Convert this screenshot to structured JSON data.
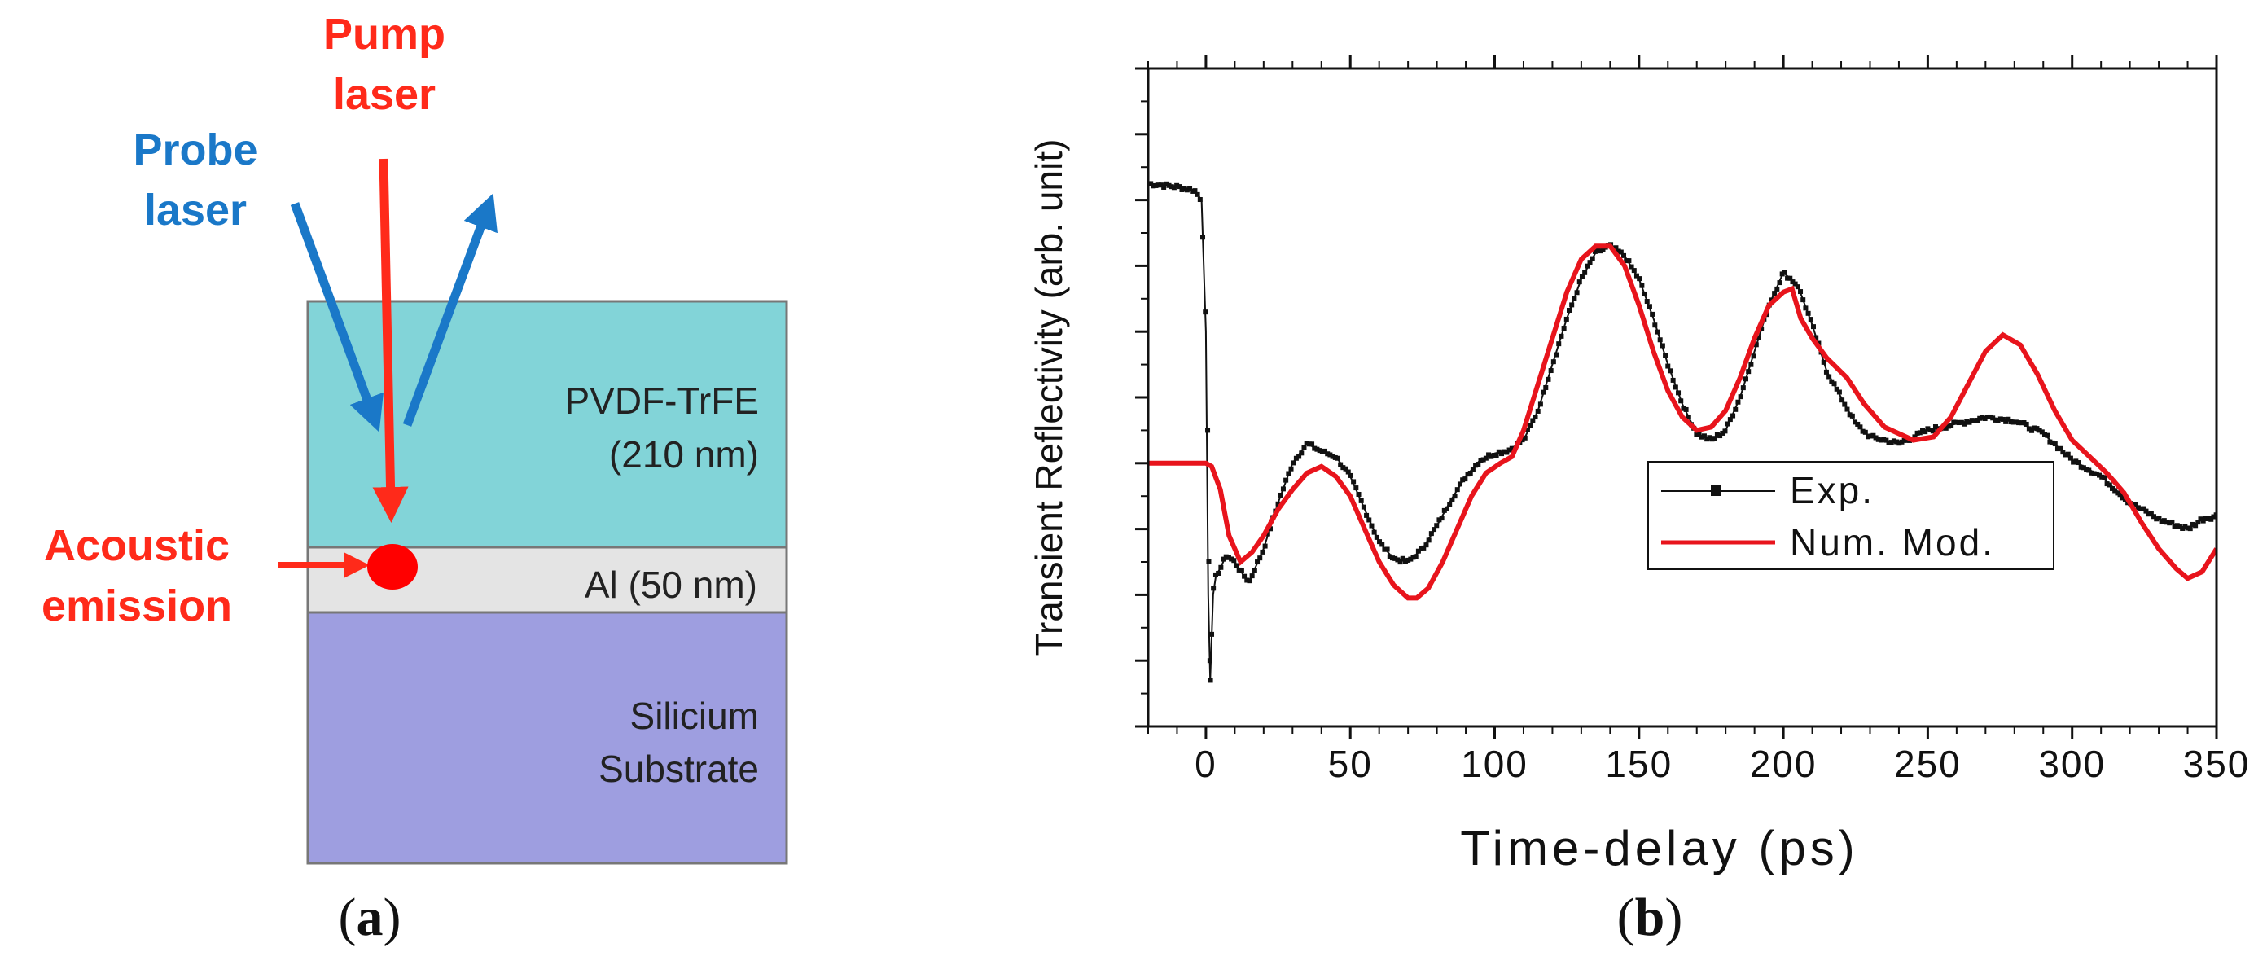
{
  "panel_a": {
    "caption_open": "(",
    "caption_letter": "a",
    "caption_close": ")",
    "pump_label_line1": "Pump",
    "pump_label_line2": "laser",
    "probe_label_line1": "Probe",
    "probe_label_line2": "laser",
    "acoustic_label_line1": "Acoustic",
    "acoustic_label_line2": "emission",
    "layer_pvdf_line1": "PVDF-TrFE",
    "layer_pvdf_line2": "(210 nm)",
    "layer_al": "Al (50 nm)",
    "layer_si_line1": "Silicium",
    "layer_si_line2": "Substrate",
    "colors": {
      "pump": "#ff2a1a",
      "probe": "#1a78c8",
      "pvdf": "#82d4d8",
      "al": "#e4e4e4",
      "substrate": "#9e9ee0",
      "border": "#777777"
    }
  },
  "panel_b": {
    "caption_open": "(",
    "caption_letter": "b",
    "caption_close": ")",
    "legend": {
      "exp": "Exp.",
      "num": "Num. Mod."
    },
    "colors": {
      "exp": "#111111",
      "num": "#e8141c"
    }
  },
  "chart_data": {
    "type": "line",
    "title": "",
    "xlabel": "Time-delay (ps)",
    "ylabel": "Transient Reflectivity (arb. unit)",
    "xlim": [
      -20,
      350
    ],
    "ylim": [
      -4,
      6
    ],
    "x_ticks": [
      0,
      50,
      100,
      150,
      200,
      250,
      300,
      350
    ],
    "y_ticks_unlabeled": [
      -4,
      -3,
      -2,
      -1,
      0,
      1,
      2,
      3,
      4,
      5,
      6
    ],
    "legend_position": "right-middle",
    "series": [
      {
        "name": "Exp.",
        "style": "black squares with thin line",
        "points": [
          [
            -20,
            4.25
          ],
          [
            -10,
            4.2
          ],
          [
            -4,
            4.15
          ],
          [
            -1.5,
            4.0
          ],
          [
            0,
            2.0
          ],
          [
            0.8,
            -2.0
          ],
          [
            1.5,
            -3.3
          ],
          [
            2.5,
            -2.0
          ],
          [
            3.5,
            -1.7
          ],
          [
            5,
            -1.6
          ],
          [
            7,
            -1.4
          ],
          [
            10,
            -1.5
          ],
          [
            13,
            -1.7
          ],
          [
            15,
            -1.8
          ],
          [
            20,
            -1.3
          ],
          [
            25,
            -0.6
          ],
          [
            30,
            0.0
          ],
          [
            35,
            0.3
          ],
          [
            40,
            0.18
          ],
          [
            45,
            0.1
          ],
          [
            50,
            -0.2
          ],
          [
            55,
            -0.7
          ],
          [
            60,
            -1.2
          ],
          [
            65,
            -1.45
          ],
          [
            70,
            -1.5
          ],
          [
            75,
            -1.3
          ],
          [
            80,
            -0.95
          ],
          [
            85,
            -0.55
          ],
          [
            90,
            -0.2
          ],
          [
            95,
            0.05
          ],
          [
            100,
            0.15
          ],
          [
            105,
            0.2
          ],
          [
            110,
            0.35
          ],
          [
            115,
            0.8
          ],
          [
            120,
            1.5
          ],
          [
            125,
            2.2
          ],
          [
            130,
            2.8
          ],
          [
            135,
            3.2
          ],
          [
            140,
            3.3
          ],
          [
            145,
            3.15
          ],
          [
            150,
            2.8
          ],
          [
            155,
            2.2
          ],
          [
            160,
            1.5
          ],
          [
            165,
            0.9
          ],
          [
            170,
            0.45
          ],
          [
            175,
            0.35
          ],
          [
            180,
            0.5
          ],
          [
            185,
            1.0
          ],
          [
            190,
            1.7
          ],
          [
            195,
            2.4
          ],
          [
            200,
            2.9
          ],
          [
            205,
            2.7
          ],
          [
            210,
            2.1
          ],
          [
            215,
            1.4
          ],
          [
            220,
            1.0
          ],
          [
            225,
            0.6
          ],
          [
            230,
            0.4
          ],
          [
            240,
            0.3
          ],
          [
            245,
            0.4
          ],
          [
            250,
            0.5
          ],
          [
            260,
            0.6
          ],
          [
            270,
            0.7
          ],
          [
            280,
            0.65
          ],
          [
            290,
            0.45
          ],
          [
            300,
            0.05
          ],
          [
            310,
            -0.2
          ],
          [
            320,
            -0.6
          ],
          [
            330,
            -0.85
          ],
          [
            340,
            -1.0
          ],
          [
            345,
            -0.85
          ],
          [
            350,
            -0.8
          ]
        ]
      },
      {
        "name": "Num. Mod.",
        "style": "red solid line",
        "points": [
          [
            -20,
            0.0
          ],
          [
            0,
            0.0
          ],
          [
            2,
            -0.05
          ],
          [
            5,
            -0.4
          ],
          [
            8,
            -1.1
          ],
          [
            12,
            -1.5
          ],
          [
            16,
            -1.35
          ],
          [
            20,
            -1.1
          ],
          [
            25,
            -0.7
          ],
          [
            30,
            -0.4
          ],
          [
            35,
            -0.15
          ],
          [
            40,
            -0.05
          ],
          [
            45,
            -0.2
          ],
          [
            50,
            -0.5
          ],
          [
            55,
            -1.0
          ],
          [
            60,
            -1.5
          ],
          [
            65,
            -1.85
          ],
          [
            70,
            -2.05
          ],
          [
            73,
            -2.05
          ],
          [
            77,
            -1.9
          ],
          [
            82,
            -1.5
          ],
          [
            87,
            -1.0
          ],
          [
            92,
            -0.5
          ],
          [
            97,
            -0.15
          ],
          [
            102,
            0.0
          ],
          [
            106,
            0.1
          ],
          [
            110,
            0.5
          ],
          [
            115,
            1.2
          ],
          [
            120,
            1.9
          ],
          [
            125,
            2.6
          ],
          [
            130,
            3.1
          ],
          [
            135,
            3.3
          ],
          [
            140,
            3.3
          ],
          [
            145,
            3.0
          ],
          [
            150,
            2.4
          ],
          [
            155,
            1.7
          ],
          [
            160,
            1.1
          ],
          [
            165,
            0.7
          ],
          [
            170,
            0.5
          ],
          [
            175,
            0.55
          ],
          [
            180,
            0.8
          ],
          [
            185,
            1.3
          ],
          [
            190,
            1.9
          ],
          [
            195,
            2.4
          ],
          [
            200,
            2.6
          ],
          [
            203,
            2.65
          ],
          [
            206,
            2.2
          ],
          [
            210,
            1.9
          ],
          [
            215,
            1.6
          ],
          [
            222,
            1.3
          ],
          [
            228,
            0.9
          ],
          [
            235,
            0.55
          ],
          [
            245,
            0.35
          ],
          [
            252,
            0.4
          ],
          [
            258,
            0.7
          ],
          [
            264,
            1.2
          ],
          [
            270,
            1.7
          ],
          [
            276,
            1.95
          ],
          [
            282,
            1.8
          ],
          [
            288,
            1.35
          ],
          [
            294,
            0.8
          ],
          [
            300,
            0.35
          ],
          [
            306,
            0.1
          ],
          [
            312,
            -0.15
          ],
          [
            318,
            -0.45
          ],
          [
            324,
            -0.9
          ],
          [
            330,
            -1.3
          ],
          [
            336,
            -1.6
          ],
          [
            340,
            -1.75
          ],
          [
            345,
            -1.65
          ],
          [
            350,
            -1.3
          ]
        ]
      }
    ]
  }
}
